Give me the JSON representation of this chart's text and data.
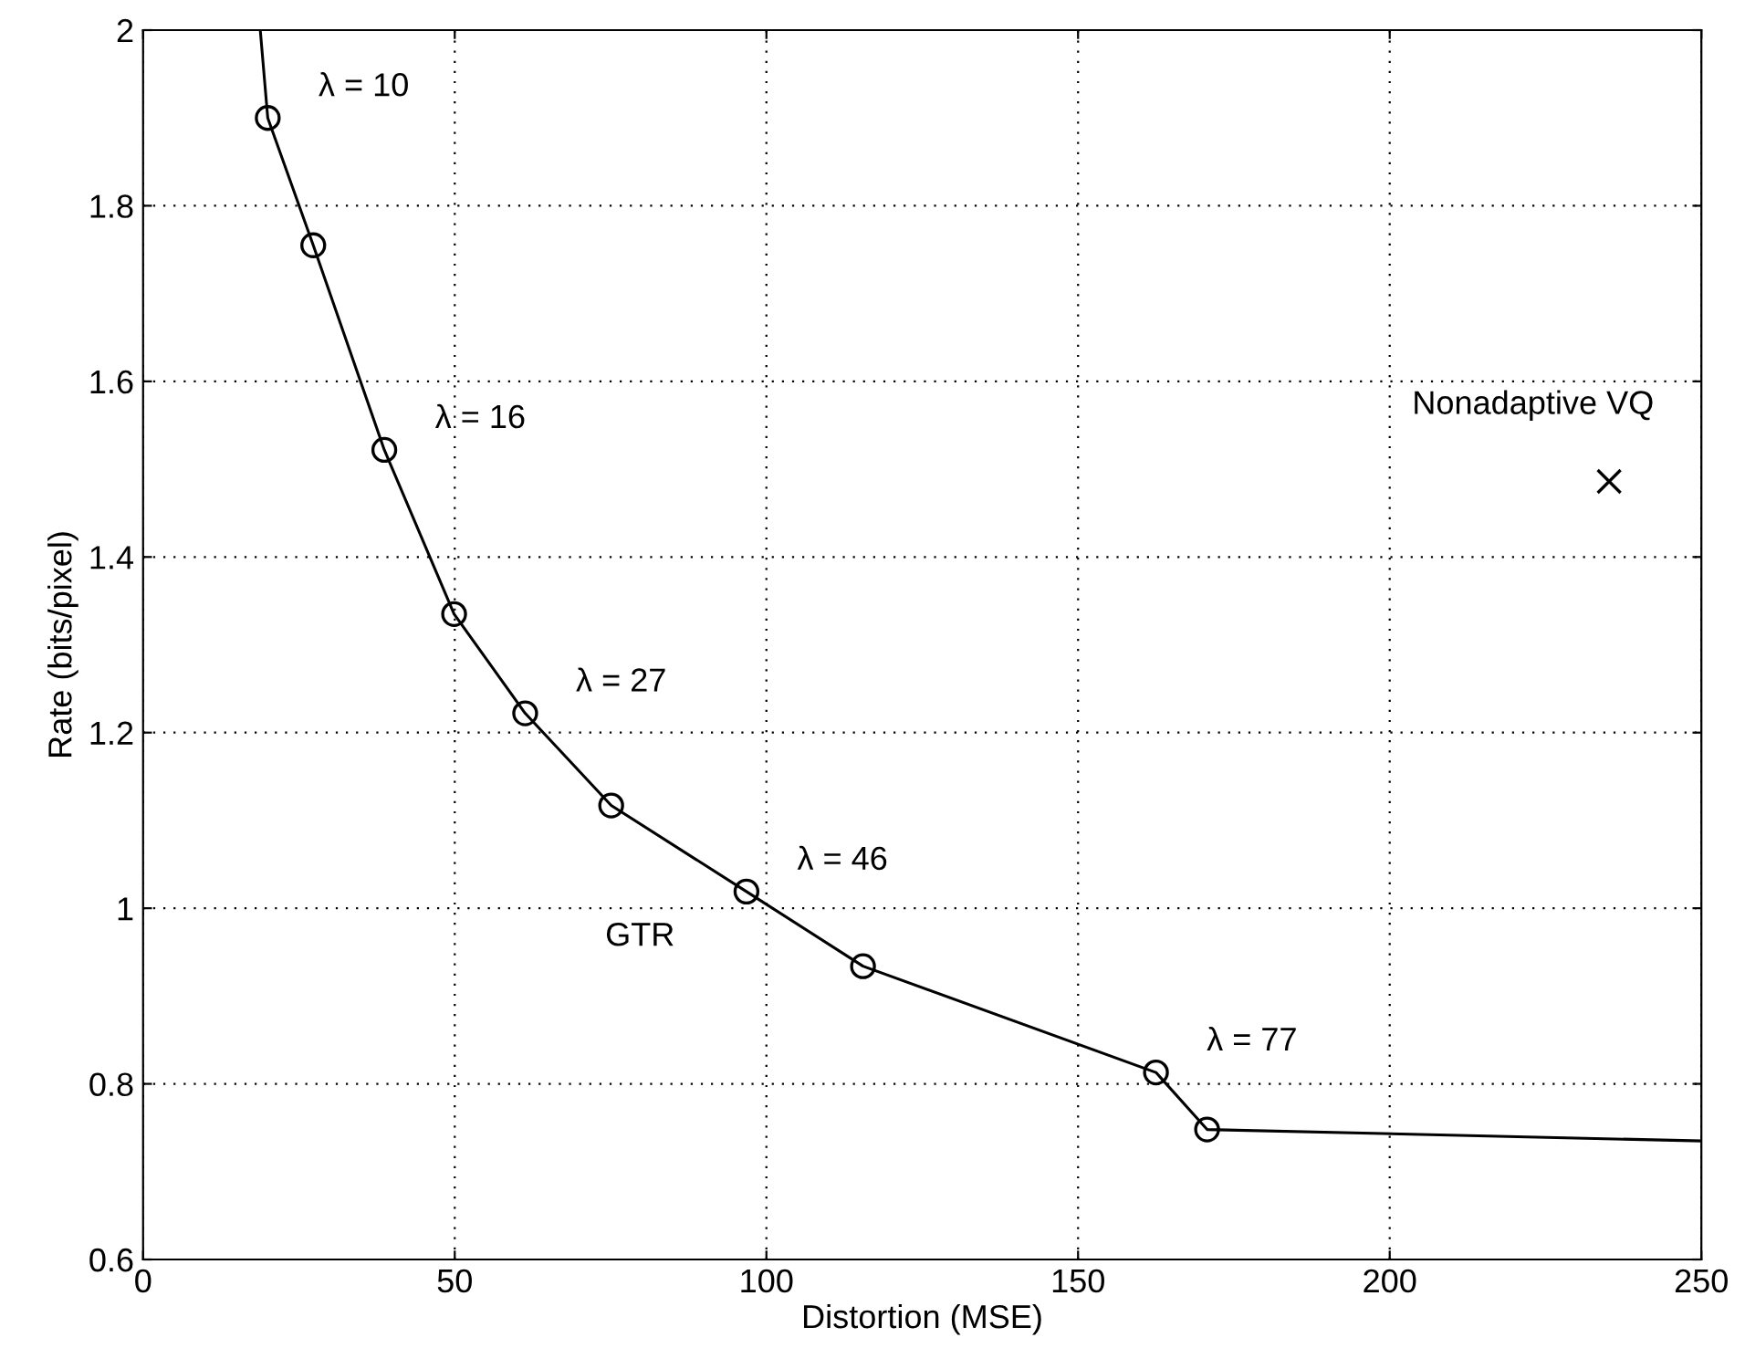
{
  "chart_data": {
    "type": "line",
    "xlabel": "Distortion (MSE)",
    "ylabel": "Rate (bits/pixel)",
    "xlim": [
      0,
      250
    ],
    "ylim": [
      0.6,
      2
    ],
    "xticks": [
      0,
      50,
      100,
      150,
      200,
      250
    ],
    "yticks": [
      0.6,
      0.8,
      1,
      1.2,
      1.4,
      1.6,
      1.8,
      2
    ],
    "grid": true,
    "series": [
      {
        "name": "GTR",
        "marker": "none",
        "color": "#000000",
        "x": [
          18.8,
          20,
          27.3,
          38.7,
          49.9,
          61.3,
          75.1,
          96.8,
          115.5,
          162.5,
          170.7,
          250
        ],
        "values": [
          2.0,
          1.9,
          1.755,
          1.522,
          1.335,
          1.222,
          1.117,
          1.019,
          0.934,
          0.813,
          0.748,
          0.735
        ]
      },
      {
        "type": "scatter",
        "marker": "circle",
        "color": "#000000",
        "x": [
          20,
          27.3,
          38.7,
          49.9,
          61.3,
          75.1,
          96.8,
          115.5,
          162.5,
          170.7
        ],
        "values": [
          1.9,
          1.755,
          1.522,
          1.335,
          1.222,
          1.117,
          1.019,
          0.934,
          0.813,
          0.748
        ]
      },
      {
        "name": "Nonadaptive VQ",
        "type": "scatter",
        "marker": "cross",
        "color": "#000000",
        "x": [
          235.2
        ],
        "values": [
          1.486
        ]
      }
    ],
    "annotations": [
      {
        "text": "λ = 10",
        "x": 20,
        "y": 1.9
      },
      {
        "text": "λ = 16",
        "x": 38.7,
        "y": 1.522
      },
      {
        "text": "λ = 27",
        "x": 61.3,
        "y": 1.222
      },
      {
        "text": "λ = 46",
        "x": 96.8,
        "y": 1.019
      },
      {
        "text": "λ = 77",
        "x": 162.5,
        "y": 0.813
      }
    ]
  }
}
